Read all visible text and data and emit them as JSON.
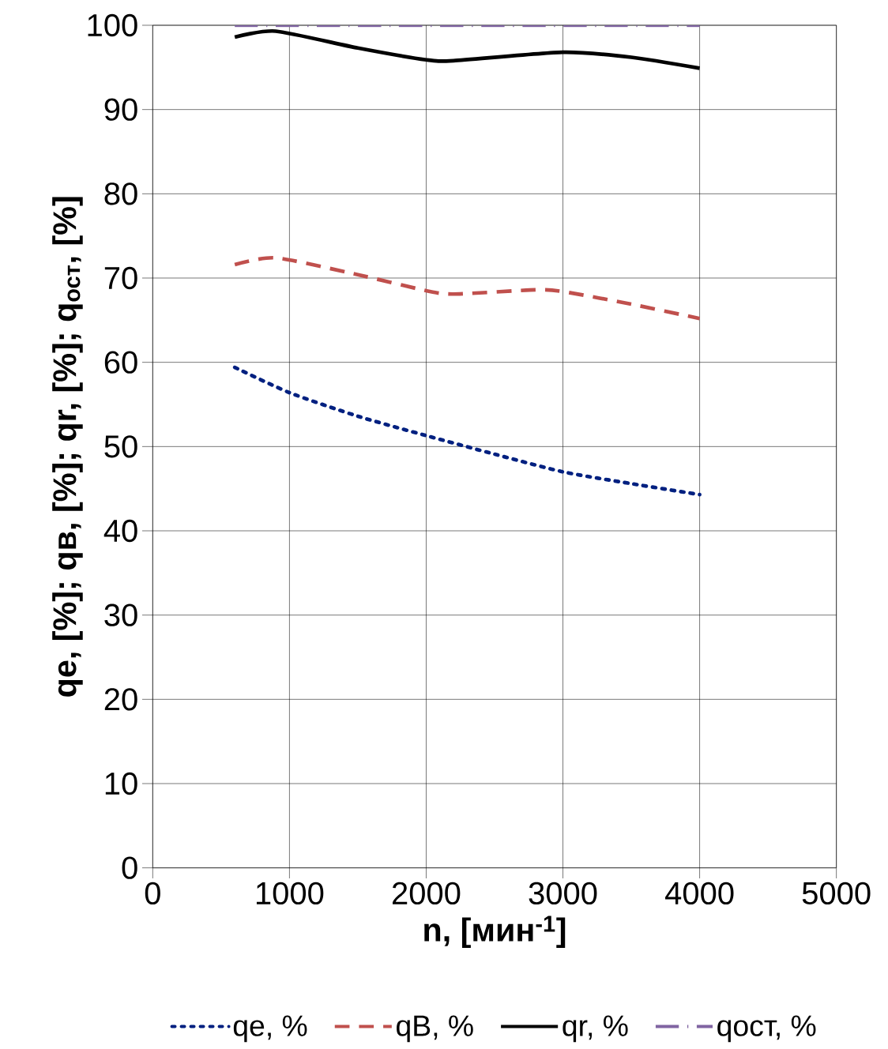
{
  "chart_data": {
    "type": "line",
    "xlabel": "n, [мин$^{-1}$]",
    "ylabel": "qe, [%];  qв, [%];  qr, [%]; q$_{ост}$, [%]",
    "xlim": [
      0,
      5000
    ],
    "xticks": [
      0,
      1000,
      2000,
      3000,
      4000,
      5000
    ],
    "ylim": [
      0,
      100
    ],
    "yticks": [
      0,
      10,
      20,
      30,
      40,
      50,
      60,
      70,
      80,
      90,
      100
    ],
    "grid": true,
    "legend": "bottom",
    "series": [
      {
        "name": "qe, %",
        "color": "#002080",
        "line_style": "dotted",
        "x": [
          600,
          1000,
          1500,
          2000,
          2500,
          3000,
          3500,
          4000
        ],
        "values": [
          59.4,
          56.4,
          53.6,
          51.3,
          49.1,
          47.0,
          45.6,
          44.3
        ]
      },
      {
        "name": "qВ, %",
        "color": "#c0504d",
        "line_style": "dashed",
        "x": [
          600,
          900,
          1500,
          2000,
          2200,
          2800,
          3000,
          3500,
          4000
        ],
        "values": [
          71.6,
          72.4,
          70.4,
          68.5,
          68.1,
          68.6,
          68.4,
          66.9,
          65.2
        ]
      },
      {
        "name": "qr, %",
        "color": "#000000",
        "line_style": "solid",
        "x": [
          600,
          900,
          1500,
          2000,
          2200,
          3000,
          3500,
          4000
        ],
        "values": [
          98.6,
          99.3,
          97.3,
          95.9,
          95.8,
          96.8,
          96.2,
          94.9
        ]
      },
      {
        "name": "qост, %",
        "color": "#8064a2",
        "line_style": "dashdot",
        "x": [
          600,
          4000
        ],
        "values": [
          100,
          100
        ]
      }
    ]
  }
}
